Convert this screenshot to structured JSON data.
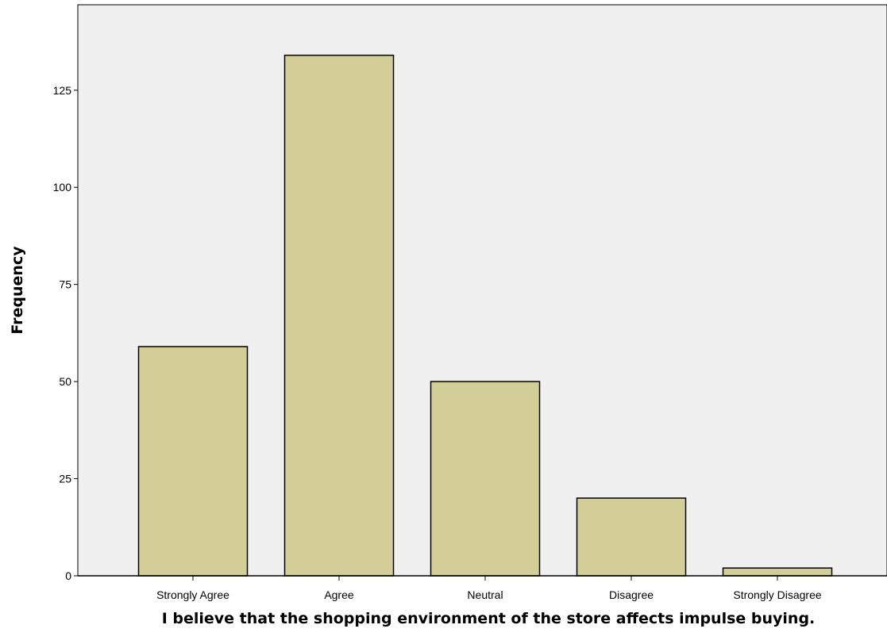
{
  "chart_data": {
    "type": "bar",
    "title": "",
    "xlabel": "I believe that the shopping environment of the store affects impulse buying.",
    "ylabel": "Frequency",
    "categories": [
      "Strongly Agree",
      "Agree",
      "Neutral",
      "Disagree",
      "Strongly Disagree"
    ],
    "values": [
      59,
      134,
      50,
      20,
      2
    ],
    "ylim": [
      0,
      147
    ],
    "yticks": [
      0,
      25,
      50,
      75,
      100,
      125
    ],
    "grid": false,
    "legend": "none",
    "colors": {
      "bar_fill": "#d3ce97",
      "bar_stroke": "#000000",
      "plot_background": "#f0f0f0",
      "axis": "#000000"
    }
  }
}
